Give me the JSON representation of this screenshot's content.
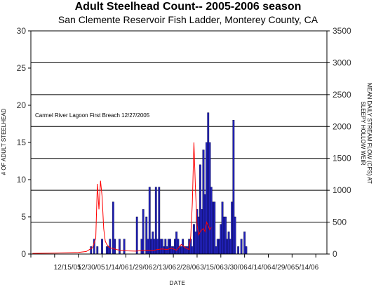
{
  "chart_data": {
    "type": "bar",
    "title": "Adult Steelhead Count-- 2005-2006 season",
    "subtitle": "San Clemente Reservoir Fish Ladder, Monterey County, CA",
    "xlabel": "DATE",
    "ylabel": "# OF ADULT STEELHEAD",
    "y2label": "MEAN DAILY STREAM FLOW (CFS) AT SLEEPY HOLLOW WEIR",
    "ylim": [
      0,
      30
    ],
    "y2lim": [
      0,
      3500
    ],
    "yticks": [
      "0",
      "5",
      "10",
      "15",
      "20",
      "25",
      "30"
    ],
    "y2ticks": [
      "0",
      "500",
      "1000",
      "1500",
      "2000",
      "2500",
      "3000",
      "3500"
    ],
    "xticks": [
      "12/15/05",
      "12/30/05",
      "1/14/06",
      "1/29/06",
      "2/13/06",
      "2/28/06",
      "3/15/06",
      "3/30/06",
      "4/14/06",
      "4/29/06",
      "5/14/06"
    ],
    "annotation": "Carmel River Lagoon First Breach 12/27/2005",
    "grid": "horizontal",
    "bars": {
      "name": "Adult steelhead count",
      "color": "#2222bb",
      "x": [
        "2005-12-23",
        "2005-12-25",
        "2005-12-27",
        "2005-12-30",
        "2006-01-02",
        "2006-01-03",
        "2006-01-04",
        "2006-01-06",
        "2006-01-07",
        "2006-01-10",
        "2006-01-13",
        "2006-01-21",
        "2006-01-24",
        "2006-01-25",
        "2006-01-27",
        "2006-01-28",
        "2006-01-29",
        "2006-01-30",
        "2006-01-31",
        "2006-02-01",
        "2006-02-02",
        "2006-02-03",
        "2006-02-04",
        "2006-02-05",
        "2006-02-06",
        "2006-02-07",
        "2006-02-08",
        "2006-02-09",
        "2006-02-10",
        "2006-02-11",
        "2006-02-12",
        "2006-02-13",
        "2006-02-14",
        "2006-02-15",
        "2006-02-16",
        "2006-02-17",
        "2006-02-18",
        "2006-02-19",
        "2006-02-20",
        "2006-02-21",
        "2006-02-22",
        "2006-02-23",
        "2006-02-24",
        "2006-02-25",
        "2006-02-26",
        "2006-02-27",
        "2006-02-28",
        "2006-03-01",
        "2006-03-02",
        "2006-03-03",
        "2006-03-04",
        "2006-03-05",
        "2006-03-06",
        "2006-03-07",
        "2006-03-08",
        "2006-03-09",
        "2006-03-10",
        "2006-03-11",
        "2006-03-12",
        "2006-03-13",
        "2006-03-14",
        "2006-03-15",
        "2006-03-16",
        "2006-03-17",
        "2006-03-18",
        "2006-03-19",
        "2006-03-20",
        "2006-03-21",
        "2006-03-22",
        "2006-03-23",
        "2006-03-24",
        "2006-03-26",
        "2006-03-28",
        "2006-03-30",
        "2006-03-31"
      ],
      "values": [
        1,
        2,
        1,
        2,
        1,
        1,
        2,
        7,
        2,
        2,
        2,
        5,
        2,
        6,
        5,
        2,
        9,
        2,
        3,
        2,
        9,
        2,
        9,
        2,
        2,
        1,
        2,
        1,
        2,
        2,
        1,
        1,
        2,
        3,
        2,
        1,
        1,
        2,
        1,
        1,
        1,
        2,
        2,
        1,
        4,
        3,
        6,
        5,
        12,
        6,
        14,
        8,
        15,
        19,
        15,
        9,
        7,
        7,
        1,
        2,
        2,
        4,
        7,
        5,
        5,
        2,
        3,
        2,
        7,
        18,
        5,
        1,
        2,
        3,
        1
      ]
    },
    "flow": {
      "name": "Mean daily stream flow (CFS) at Sleepy Hollow Weir",
      "color": "#ff0000",
      "x": [
        "2005-11-16",
        "2005-12-01",
        "2005-12-15",
        "2005-12-20",
        "2005-12-24",
        "2005-12-26",
        "2005-12-27",
        "2005-12-28",
        "2005-12-29",
        "2005-12-30",
        "2005-12-31",
        "2006-01-01",
        "2006-01-02",
        "2006-01-03",
        "2006-01-04",
        "2006-01-05",
        "2006-01-06",
        "2006-01-08",
        "2006-01-10",
        "2006-01-15",
        "2006-01-20",
        "2006-01-25",
        "2006-01-28",
        "2006-01-31",
        "2006-02-03",
        "2006-02-06",
        "2006-02-09",
        "2006-02-12",
        "2006-02-15",
        "2006-02-18",
        "2006-02-21",
        "2006-02-23",
        "2006-02-24",
        "2006-02-25",
        "2006-02-26",
        "2006-02-27",
        "2006-02-28",
        "2006-03-01",
        "2006-03-02",
        "2006-03-03",
        "2006-03-04",
        "2006-03-05",
        "2006-03-06",
        "2006-03-07",
        "2006-03-08",
        "2006-03-09"
      ],
      "values": [
        10,
        15,
        25,
        40,
        100,
        250,
        1100,
        700,
        1150,
        900,
        400,
        200,
        150,
        120,
        100,
        90,
        85,
        70,
        60,
        50,
        45,
        55,
        60,
        55,
        70,
        80,
        70,
        90,
        60,
        150,
        90,
        70,
        280,
        800,
        1750,
        1000,
        450,
        300,
        350,
        380,
        400,
        350,
        500,
        450,
        380,
        420
      ]
    }
  }
}
